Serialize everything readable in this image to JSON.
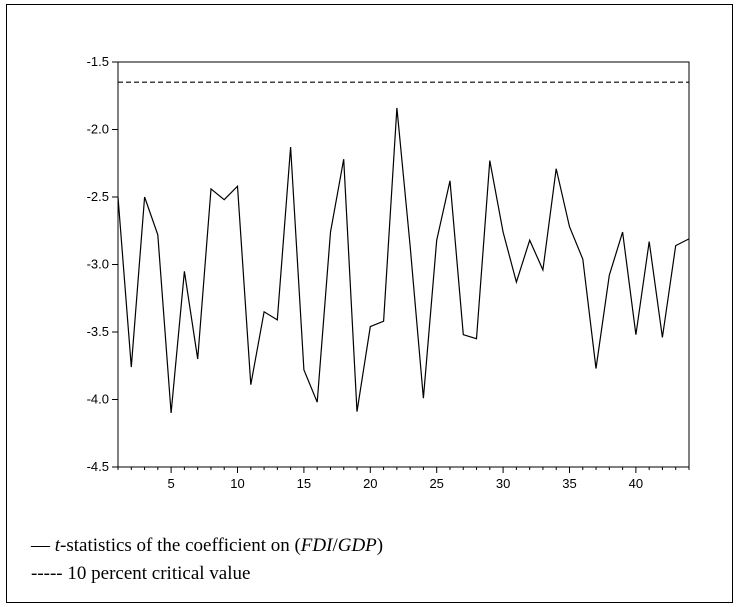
{
  "chart_data": {
    "type": "line",
    "x": [
      1,
      2,
      3,
      4,
      5,
      6,
      7,
      8,
      9,
      10,
      11,
      12,
      13,
      14,
      15,
      16,
      17,
      18,
      19,
      20,
      21,
      22,
      23,
      24,
      25,
      26,
      27,
      28,
      29,
      30,
      31,
      32,
      33,
      34,
      35,
      36,
      37,
      38,
      39,
      40,
      41,
      42,
      43,
      44
    ],
    "series": [
      {
        "name": "t-statistics of the coefficient on (FDI/GDP)",
        "style": "solid",
        "color": "#000000",
        "values": [
          -2.5,
          -3.76,
          -2.5,
          -2.78,
          -4.1,
          -3.05,
          -3.7,
          -2.44,
          -2.52,
          -2.42,
          -3.89,
          -3.35,
          -3.41,
          -2.13,
          -3.78,
          -4.02,
          -2.76,
          -2.22,
          -4.09,
          -3.46,
          -3.42,
          -1.84,
          -2.86,
          -3.99,
          -2.82,
          -2.38,
          -3.52,
          -3.55,
          -2.23,
          -2.76,
          -3.13,
          -2.82,
          -3.04,
          -2.29,
          -2.72,
          -2.96,
          -3.77,
          -3.08,
          -2.76,
          -3.52,
          -2.83,
          -3.54,
          -2.86,
          -2.81
        ]
      },
      {
        "name": "10 percent critical value",
        "style": "dashed",
        "color": "#000000",
        "values": [
          -1.65,
          -1.65,
          -1.65,
          -1.65,
          -1.65,
          -1.65,
          -1.65,
          -1.65,
          -1.65,
          -1.65,
          -1.65,
          -1.65,
          -1.65,
          -1.65,
          -1.65,
          -1.65,
          -1.65,
          -1.65,
          -1.65,
          -1.65,
          -1.65,
          -1.65,
          -1.65,
          -1.65,
          -1.65,
          -1.65,
          -1.65,
          -1.65,
          -1.65,
          -1.65,
          -1.65,
          -1.65,
          -1.65,
          -1.65,
          -1.65,
          -1.65,
          -1.65,
          -1.65,
          -1.65,
          -1.65,
          -1.65,
          -1.65,
          -1.65,
          -1.65
        ]
      }
    ],
    "xlim": [
      1,
      44
    ],
    "ylim": [
      -4.5,
      -1.5
    ],
    "x_ticks": [
      5,
      10,
      15,
      20,
      25,
      30,
      35,
      40
    ],
    "x_tick_labels": [
      "5",
      "10",
      "15",
      "20",
      "25",
      "30",
      "35",
      "40"
    ],
    "y_ticks": [
      -1.5,
      -2.0,
      -2.5,
      -3.0,
      -3.5,
      -4.0,
      -4.5
    ],
    "y_tick_labels": [
      "-1.5",
      "-2.0",
      "-2.5",
      "-3.0",
      "-3.5",
      "-4.0",
      "-4.5"
    ],
    "grid": false,
    "legend_position": "bottom-left"
  },
  "legend": {
    "row1": {
      "marker": "—",
      "t": "t",
      "pre": "-statistics of the coefficient on (",
      "fdi": "FDI",
      "slash": "/",
      "gdp": "GDP",
      "post": ")"
    },
    "row2": {
      "marker": "-----",
      "text": "10 percent critical value"
    }
  }
}
